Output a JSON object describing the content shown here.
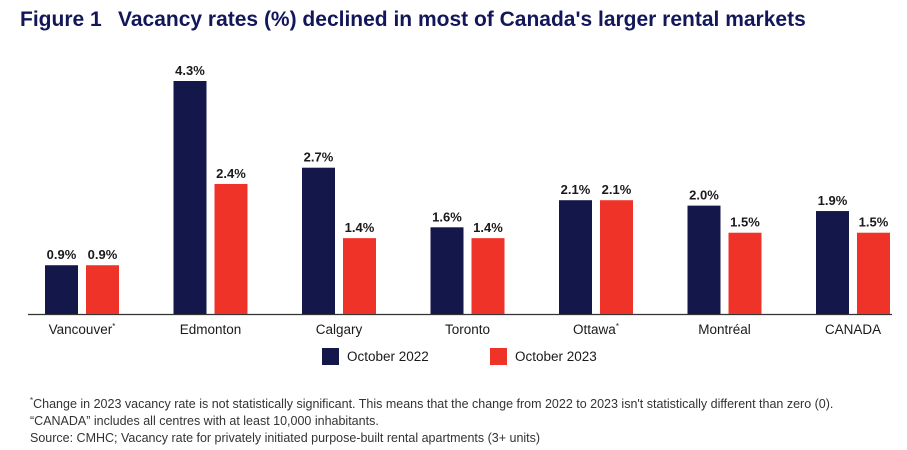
{
  "header": {
    "figure_label": "Figure 1",
    "title": "Vacancy rates (%) declined in most of Canada's larger rental markets"
  },
  "colors": {
    "series_1": "#13174a",
    "series_2": "#ef3328",
    "axis": "#333333",
    "title": "#13175a"
  },
  "chart_data": {
    "type": "bar",
    "categories": [
      "Vancouver",
      "Edmonton",
      "Calgary",
      "Toronto",
      "Ottawa",
      "Montréal",
      "CANADA"
    ],
    "category_marks": [
      "*",
      "",
      "",
      "",
      "*",
      "",
      ""
    ],
    "series": [
      {
        "name": "October 2022",
        "values": [
          0.9,
          4.3,
          2.7,
          1.6,
          2.1,
          2.0,
          1.9
        ],
        "labels": [
          "0.9%",
          "4.3%",
          "2.7%",
          "1.6%",
          "2.1%",
          "2.0%",
          "1.9%"
        ]
      },
      {
        "name": "October 2023",
        "values": [
          0.9,
          2.4,
          1.4,
          1.4,
          2.1,
          1.5,
          1.5
        ],
        "labels": [
          "0.9%",
          "2.4%",
          "1.4%",
          "1.4%",
          "2.1%",
          "1.5%",
          "1.5%"
        ]
      }
    ],
    "ylim": [
      0,
      4.3
    ],
    "grid": false,
    "legend_position": "bottom-center"
  },
  "notes": {
    "footnote_mark": "*",
    "footnote": "Change in 2023 vacancy rate is not statistically significant. This means that the change from 2022 to 2023 isn't statistically different than zero (0).",
    "canada_note": "“CANADA” includes all centres with at least 10,000 inhabitants.",
    "source": "Source: CMHC; Vacancy rate for privately initiated purpose-built rental apartments (3+ units)"
  }
}
